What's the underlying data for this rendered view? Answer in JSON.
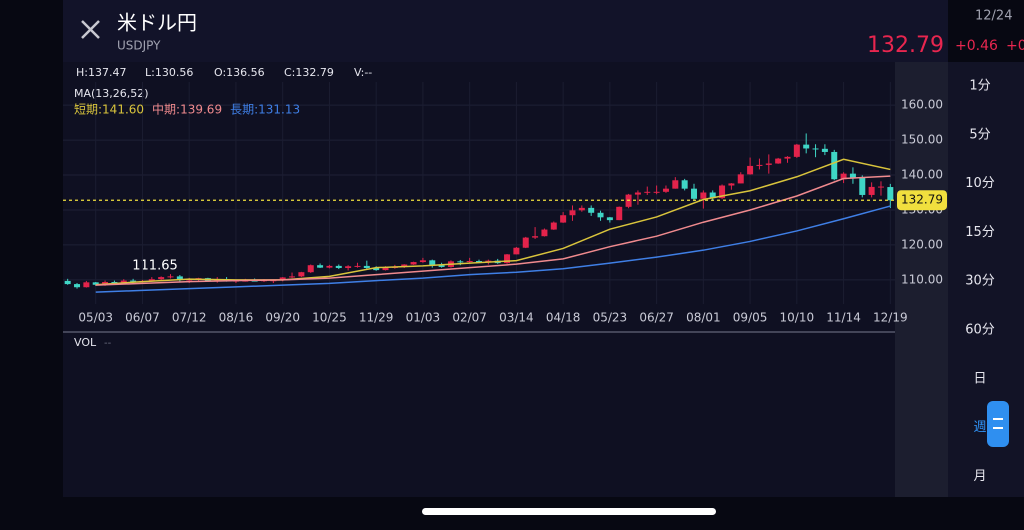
{
  "header": {
    "title": "米ドル円",
    "symbol": "USDJPY",
    "date": "12/24",
    "price": "132.79",
    "change": "+0.46",
    "change_cut": "+0"
  },
  "ohlc_bar": [
    "H:137.47",
    "L:130.56",
    "O:136.56",
    "C:132.79",
    "V:--"
  ],
  "intervals": [
    "1分",
    "5分",
    "10分",
    "15分",
    "30分",
    "60分",
    "日",
    "週",
    "月"
  ],
  "selected_interval": "週",
  "volume_panel": {
    "label": "VOL",
    "value": "--"
  },
  "chart_data": {
    "type": "candlestick",
    "ma_title": "MA(13,26,52)",
    "up_color": "#e3234b",
    "down_color": "#3fd6c6",
    "categories": [
      null,
      null,
      null,
      "05/03",
      null,
      null,
      null,
      null,
      "06/07",
      null,
      null,
      null,
      null,
      "07/12",
      null,
      null,
      null,
      null,
      "08/16",
      null,
      null,
      null,
      null,
      "09/20",
      null,
      null,
      null,
      null,
      "10/25",
      null,
      null,
      null,
      null,
      "11/29",
      null,
      null,
      null,
      null,
      "01/03",
      null,
      null,
      null,
      null,
      "02/07",
      null,
      null,
      null,
      null,
      "03/14",
      null,
      null,
      null,
      null,
      "04/18",
      null,
      null,
      null,
      null,
      "05/23",
      null,
      null,
      null,
      null,
      "06/27",
      null,
      null,
      null,
      null,
      "08/01",
      null,
      null,
      null,
      null,
      "09/05",
      null,
      null,
      null,
      null,
      "10/10",
      null,
      null,
      null,
      null,
      "11/14",
      null,
      null,
      null,
      null,
      "12/19"
    ],
    "candles": [
      [
        109.7,
        110.3,
        108.6,
        108.8
      ],
      [
        108.8,
        109.1,
        107.5,
        107.9
      ],
      [
        107.9,
        109.7,
        107.8,
        109.3
      ],
      [
        109.3,
        109.4,
        108.3,
        108.6
      ],
      [
        108.6,
        109.8,
        108.3,
        109.4
      ],
      [
        109.4,
        109.8,
        108.6,
        109.0
      ],
      [
        109.0,
        110.2,
        108.8,
        109.8
      ],
      [
        109.8,
        110.3,
        109.2,
        109.5
      ],
      [
        109.5,
        110.0,
        109.2,
        109.7
      ],
      [
        109.7,
        110.8,
        109.5,
        110.2
      ],
      [
        110.2,
        111.0,
        109.7,
        110.8
      ],
      [
        110.8,
        111.65,
        110.4,
        111.0
      ],
      [
        111.0,
        111.4,
        109.5,
        110.1
      ],
      [
        110.1,
        110.6,
        109.1,
        110.1
      ],
      [
        110.1,
        110.6,
        109.7,
        110.5
      ],
      [
        110.5,
        110.6,
        109.5,
        109.7
      ],
      [
        109.7,
        110.8,
        109.2,
        110.2
      ],
      [
        110.2,
        110.8,
        109.5,
        109.6
      ],
      [
        109.6,
        110.0,
        109.1,
        109.8
      ],
      [
        109.8,
        110.3,
        109.5,
        109.8
      ],
      [
        109.8,
        110.4,
        109.6,
        109.7
      ],
      [
        109.7,
        110.2,
        109.4,
        109.9
      ],
      [
        109.9,
        110.1,
        109.1,
        109.9
      ],
      [
        109.9,
        110.8,
        109.6,
        110.7
      ],
      [
        110.7,
        112.1,
        110.5,
        111.0
      ],
      [
        111.0,
        112.3,
        110.8,
        112.2
      ],
      [
        112.2,
        114.4,
        112.0,
        114.2
      ],
      [
        114.2,
        114.7,
        113.4,
        113.5
      ],
      [
        113.5,
        114.3,
        113.3,
        114.0
      ],
      [
        114.0,
        114.4,
        113.1,
        113.4
      ],
      [
        113.4,
        114.2,
        112.7,
        113.9
      ],
      [
        113.9,
        114.9,
        113.5,
        114.0
      ],
      [
        114.0,
        115.5,
        113.1,
        113.4
      ],
      [
        113.4,
        113.9,
        112.6,
        112.8
      ],
      [
        112.8,
        113.9,
        112.7,
        113.4
      ],
      [
        113.4,
        114.3,
        113.2,
        113.7
      ],
      [
        113.7,
        114.5,
        113.4,
        114.4
      ],
      [
        114.4,
        115.2,
        114.3,
        115.1
      ],
      [
        115.1,
        116.3,
        114.9,
        115.6
      ],
      [
        115.6,
        115.8,
        113.5,
        114.2
      ],
      [
        114.2,
        114.9,
        113.5,
        113.7
      ],
      [
        113.7,
        115.6,
        113.5,
        115.3
      ],
      [
        115.3,
        115.7,
        114.2,
        115.2
      ],
      [
        115.2,
        116.3,
        114.9,
        115.4
      ],
      [
        115.4,
        115.8,
        114.8,
        115.0
      ],
      [
        115.0,
        115.8,
        114.4,
        115.5
      ],
      [
        115.5,
        116.0,
        114.6,
        114.8
      ],
      [
        114.8,
        117.4,
        114.6,
        117.3
      ],
      [
        117.3,
        119.4,
        117.3,
        119.2
      ],
      [
        119.2,
        122.3,
        119.1,
        122.1
      ],
      [
        122.1,
        125.1,
        121.7,
        122.5
      ],
      [
        122.5,
        124.7,
        122.4,
        124.4
      ],
      [
        124.4,
        126.7,
        124.3,
        126.4
      ],
      [
        126.4,
        129.4,
        126.3,
        128.5
      ],
      [
        128.5,
        131.3,
        126.9,
        129.9
      ],
      [
        129.9,
        131.3,
        129.5,
        130.6
      ],
      [
        130.6,
        131.3,
        128.3,
        129.2
      ],
      [
        129.2,
        129.8,
        126.9,
        127.9
      ],
      [
        127.9,
        128.0,
        126.4,
        127.1
      ],
      [
        127.1,
        131.0,
        127.1,
        130.9
      ],
      [
        130.9,
        134.6,
        130.5,
        134.4
      ],
      [
        134.4,
        135.6,
        131.5,
        135.0
      ],
      [
        135.0,
        136.7,
        134.3,
        135.2
      ],
      [
        135.2,
        137.0,
        134.5,
        135.2
      ],
      [
        135.2,
        137.0,
        134.9,
        136.1
      ],
      [
        136.1,
        139.4,
        136.1,
        138.5
      ],
      [
        138.5,
        138.9,
        135.6,
        136.1
      ],
      [
        136.1,
        137.5,
        132.5,
        133.2
      ],
      [
        133.2,
        135.6,
        130.4,
        135.0
      ],
      [
        135.0,
        135.6,
        132.6,
        133.4
      ],
      [
        133.4,
        137.3,
        133.1,
        137.0
      ],
      [
        137.0,
        137.7,
        135.8,
        137.6
      ],
      [
        137.6,
        140.8,
        137.6,
        140.2
      ],
      [
        140.2,
        145.0,
        140.1,
        142.6
      ],
      [
        142.6,
        144.7,
        141.6,
        142.9
      ],
      [
        142.9,
        145.9,
        140.4,
        143.3
      ],
      [
        143.3,
        144.9,
        143.2,
        144.7
      ],
      [
        144.7,
        145.4,
        143.5,
        145.2
      ],
      [
        145.2,
        148.9,
        144.9,
        148.7
      ],
      [
        148.7,
        151.9,
        146.2,
        147.6
      ],
      [
        147.6,
        148.8,
        145.1,
        147.5
      ],
      [
        147.5,
        148.8,
        145.7,
        146.6
      ],
      [
        146.6,
        147.2,
        138.5,
        138.8
      ],
      [
        138.8,
        140.8,
        137.7,
        140.4
      ],
      [
        140.4,
        142.2,
        137.5,
        139.2
      ],
      [
        139.2,
        139.9,
        133.6,
        134.3
      ],
      [
        134.3,
        137.9,
        133.6,
        136.6
      ],
      [
        136.6,
        138.2,
        134.1,
        136.7
      ],
      [
        136.56,
        137.47,
        130.56,
        132.79
      ]
    ],
    "series": [
      {
        "name": "短期",
        "label": "短期:141.60",
        "color": "#d9c43c",
        "x": [
          "05/03",
          "06/07",
          "07/12",
          "08/16",
          "09/20",
          "10/25",
          "11/29",
          "01/03",
          "02/07",
          "03/14",
          "04/18",
          "05/23",
          "06/27",
          "08/01",
          "09/05",
          "10/10",
          "11/14",
          "12/19"
        ],
        "values": [
          108.6,
          109.5,
          110.2,
          110.0,
          110.0,
          111.0,
          113.5,
          114.0,
          114.8,
          115.5,
          119.0,
          124.5,
          128.0,
          133.0,
          135.5,
          139.5,
          144.5,
          141.6
        ]
      },
      {
        "name": "中期",
        "label": "中期:139.69",
        "color": "#f08a8e",
        "x": [
          "05/03",
          "06/07",
          "07/12",
          "08/16",
          "09/20",
          "10/25",
          "11/29",
          "01/03",
          "02/07",
          "03/14",
          "04/18",
          "05/23",
          "06/27",
          "08/01",
          "09/05",
          "10/10",
          "11/14",
          "12/19"
        ],
        "values": [
          108.5,
          109.0,
          109.5,
          109.8,
          110.0,
          110.5,
          111.5,
          112.5,
          113.5,
          114.5,
          116.0,
          119.5,
          122.5,
          126.5,
          130.0,
          134.0,
          139.0,
          139.69
        ]
      },
      {
        "name": "長期",
        "label": "長期:131.13",
        "color": "#3f7fe6",
        "x": [
          "05/03",
          "06/07",
          "07/12",
          "08/16",
          "09/20",
          "10/25",
          "11/29",
          "01/03",
          "02/07",
          "03/14",
          "04/18",
          "05/23",
          "06/27",
          "08/01",
          "09/05",
          "10/10",
          "11/14",
          "12/19"
        ],
        "values": [
          106.5,
          107.0,
          107.5,
          108.0,
          108.5,
          109.0,
          109.8,
          110.5,
          111.5,
          112.2,
          113.2,
          114.8,
          116.5,
          118.5,
          121.0,
          124.0,
          127.5,
          131.13
        ]
      }
    ],
    "ylim": [
      103.1,
      164.9
    ],
    "yticks": [
      {
        "value": 110,
        "label": "110.00"
      },
      {
        "value": 120,
        "label": "120.00"
      },
      {
        "value": 130,
        "label": "130.00"
      },
      {
        "value": 140,
        "label": "140.00"
      },
      {
        "value": 150,
        "label": "150.00"
      },
      {
        "value": 160,
        "label": "160.00"
      }
    ],
    "grid": true,
    "price_line": {
      "value": 132.79,
      "color": "#f1df3e"
    },
    "high_marker": {
      "value": 111.65
    }
  }
}
